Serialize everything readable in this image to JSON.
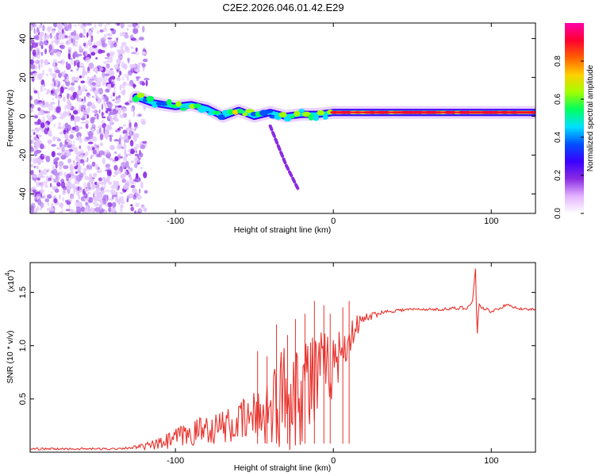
{
  "title": "C2E2.2026.046.01.42.E29",
  "chart_data": [
    {
      "type": "heatmap",
      "name": "spectrogram",
      "xlabel": "Height of straight line (km)",
      "ylabel": "Frequency (Hz)",
      "xlim": [
        -192,
        128
      ],
      "ylim": [
        -50,
        48
      ],
      "xticks": [
        -100,
        0,
        100
      ],
      "yticks": [
        -40,
        -20,
        0,
        20,
        40
      ],
      "colorbar": {
        "label": "Normalized spectral amplitude",
        "range": [
          0,
          1
        ],
        "ticks": [
          0.0,
          0.2,
          0.4,
          0.6,
          0.8
        ],
        "tick_labels": [
          "0.0",
          "0.2",
          "0.4",
          "0.6",
          "0.8"
        ],
        "colors": [
          "#ffffff",
          "#e3b3ff",
          "#8a2be2",
          "#3a00ff",
          "#0050ff",
          "#00e0ff",
          "#00ff60",
          "#a0ff00",
          "#ffd000",
          "#ff6000",
          "#ff0030",
          "#ff00aa"
        ]
      },
      "signal_track": [
        {
          "x": -125,
          "y": 10
        },
        {
          "x": -115,
          "y": 7
        },
        {
          "x": -100,
          "y": 5
        },
        {
          "x": -90,
          "y": 6
        },
        {
          "x": -80,
          "y": 4
        },
        {
          "x": -70,
          "y": 0
        },
        {
          "x": -60,
          "y": 3
        },
        {
          "x": -50,
          "y": 0
        },
        {
          "x": -40,
          "y": 2
        },
        {
          "x": -30,
          "y": 0
        },
        {
          "x": -20,
          "y": 1
        },
        {
          "x": -10,
          "y": 1
        },
        {
          "x": 0,
          "y": 2
        },
        {
          "x": 50,
          "y": 2
        },
        {
          "x": 100,
          "y": 2
        },
        {
          "x": 128,
          "y": 2
        }
      ],
      "branch_track": [
        {
          "x": -40,
          "y": -5
        },
        {
          "x": -35,
          "y": -15
        },
        {
          "x": -30,
          "y": -25
        },
        {
          "x": -22,
          "y": -38
        }
      ],
      "noise_region": {
        "x_from": -192,
        "x_to": -118,
        "y_from": -50,
        "y_to": 48
      }
    },
    {
      "type": "line",
      "name": "snr",
      "xlabel": "Height of straight line (km)",
      "ylabel": "SNR (10 * v/v)",
      "scale_label": "(x10",
      "scale_exponent": "4",
      "xlim": [
        -192,
        128
      ],
      "ylim": [
        0,
        1.78
      ],
      "xticks": [
        -100,
        0,
        100
      ],
      "yticks": [
        0.5,
        1.0,
        1.5
      ],
      "ytick_labels": [
        "0.5",
        "1.0",
        "1.5"
      ],
      "color": "#e8332d",
      "series": [
        {
          "name": "SNR",
          "x": [
            -192,
            -180,
            -170,
            -160,
            -150,
            -140,
            -130,
            -120,
            -115,
            -110,
            -105,
            -100,
            -95,
            -90,
            -85,
            -80,
            -75,
            -70,
            -65,
            -60,
            -55,
            -50,
            -45,
            -40,
            -35,
            -30,
            -25,
            -20,
            -15,
            -10,
            -5,
            0,
            5,
            10,
            15,
            20,
            25,
            30,
            40,
            50,
            60,
            70,
            80,
            85,
            88,
            90,
            91,
            92,
            95,
            100,
            105,
            110,
            120,
            128
          ],
          "y": [
            0.03,
            0.03,
            0.03,
            0.03,
            0.03,
            0.03,
            0.04,
            0.05,
            0.06,
            0.07,
            0.09,
            0.12,
            0.14,
            0.16,
            0.19,
            0.22,
            0.2,
            0.24,
            0.22,
            0.26,
            0.28,
            0.3,
            0.35,
            0.38,
            0.42,
            0.5,
            0.55,
            0.6,
            0.62,
            0.62,
            0.7,
            0.8,
            0.92,
            1.05,
            1.18,
            1.25,
            1.28,
            1.31,
            1.33,
            1.34,
            1.34,
            1.34,
            1.35,
            1.36,
            1.4,
            1.72,
            1.05,
            1.38,
            1.35,
            1.32,
            1.35,
            1.38,
            1.34,
            1.34
          ]
        }
      ],
      "noise_amplitude": {
        "x": [
          -192,
          -130,
          -120,
          -110,
          -100,
          -80,
          -60,
          -40,
          -30,
          -20,
          -10,
          0,
          10,
          20,
          30,
          60,
          85,
          128
        ],
        "y": [
          0.01,
          0.01,
          0.03,
          0.06,
          0.1,
          0.14,
          0.18,
          0.35,
          0.55,
          0.6,
          0.5,
          0.3,
          0.15,
          0.05,
          0.02,
          0.01,
          0.02,
          0.01
        ]
      }
    }
  ]
}
